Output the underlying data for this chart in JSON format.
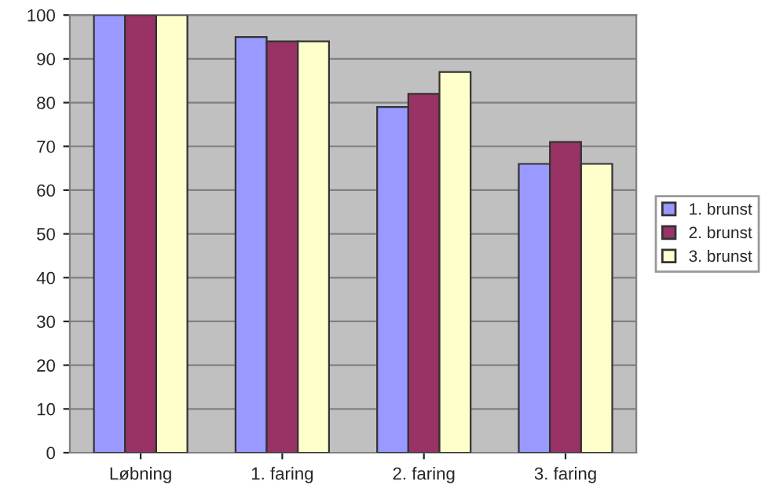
{
  "chart_data": {
    "type": "bar",
    "categories": [
      "Løbning",
      "1. faring",
      "2. faring",
      "3. faring"
    ],
    "series": [
      {
        "name": "1. brunst",
        "color": "#9999ff",
        "values": [
          100,
          95,
          79,
          66
        ]
      },
      {
        "name": "2. brunst",
        "color": "#993366",
        "values": [
          100,
          94,
          82,
          71
        ]
      },
      {
        "name": "3. brunst",
        "color": "#ffffcc",
        "values": [
          100,
          94,
          87,
          66
        ]
      }
    ],
    "ylim": [
      0,
      100
    ],
    "yticks": [
      0,
      10,
      20,
      30,
      40,
      50,
      60,
      70,
      80,
      90,
      100
    ],
    "grid": "y",
    "legend": "right"
  }
}
